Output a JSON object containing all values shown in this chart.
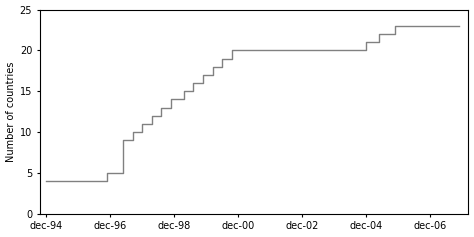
{
  "x_values": [
    1994.0,
    1995.9,
    1995.9,
    1996.4,
    1996.4,
    1996.7,
    1996.7,
    1997.0,
    1997.0,
    1997.3,
    1997.3,
    1997.6,
    1997.6,
    1997.9,
    1997.9,
    1998.3,
    1998.3,
    1998.6,
    1998.6,
    1998.9,
    1998.9,
    1999.2,
    1999.2,
    1999.5,
    1999.5,
    1999.8,
    1999.8,
    2000.1,
    2000.1,
    2001.5,
    2001.5,
    2004.0,
    2004.0,
    2004.4,
    2004.4,
    2004.9,
    2004.9,
    2006.9
  ],
  "y_values": [
    4,
    4,
    5,
    5,
    9,
    9,
    10,
    10,
    11,
    11,
    12,
    12,
    13,
    13,
    14,
    14,
    15,
    15,
    16,
    16,
    17,
    17,
    18,
    18,
    19,
    19,
    20,
    20,
    20,
    20,
    20,
    20,
    21,
    21,
    22,
    22,
    23,
    23
  ],
  "x_ticks": [
    1994,
    1996,
    1998,
    2000,
    2002,
    2004,
    2006
  ],
  "x_tick_labels": [
    "dec-94",
    "dec-96",
    "dec-98",
    "dec-00",
    "dec-02",
    "dec-04",
    "dec-06"
  ],
  "y_ticks": [
    0,
    5,
    10,
    15,
    20,
    25
  ],
  "ylim": [
    0,
    25
  ],
  "xlim": [
    1993.8,
    2007.2
  ],
  "ylabel": "Number of countries",
  "line_color": "#808080",
  "line_width": 1.0,
  "background_color": "#ffffff",
  "spine_color": "#000000"
}
